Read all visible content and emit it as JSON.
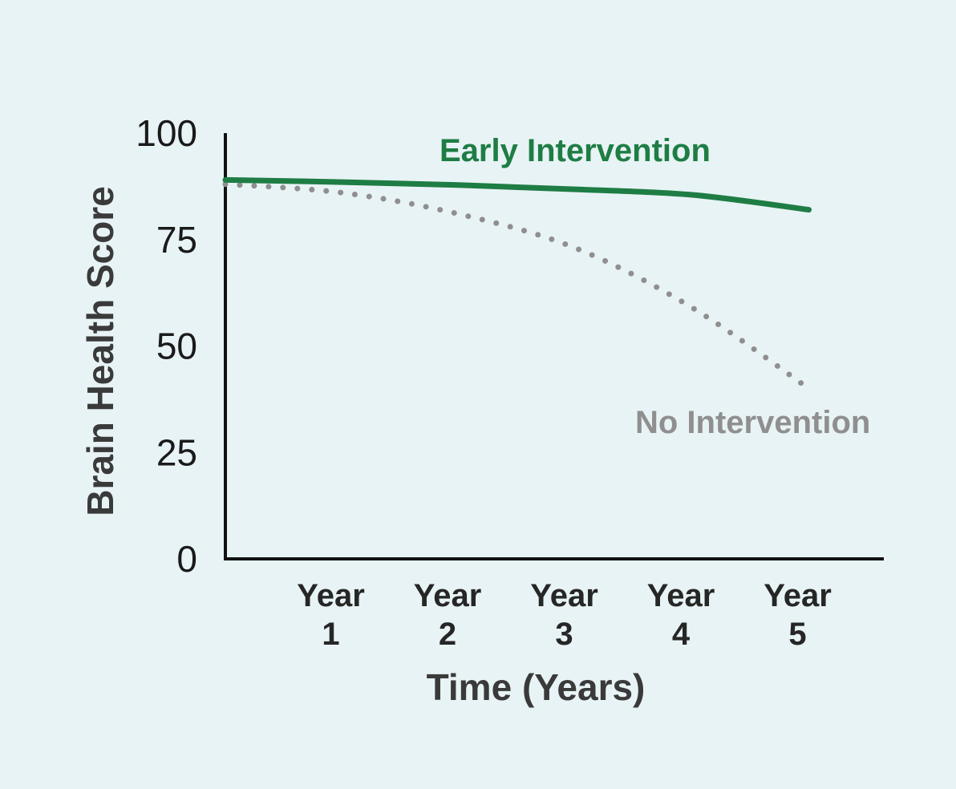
{
  "chart_data": {
    "type": "line",
    "title": "",
    "xlabel": "Time (Years)",
    "ylabel": "Brain Health Score",
    "xlim": [
      0,
      5.7
    ],
    "ylim": [
      0,
      100
    ],
    "yticks": [
      "0",
      "25",
      "50",
      "75",
      "100"
    ],
    "xtick_labels": [
      {
        "x": 1,
        "line1": "Year",
        "line2": "1"
      },
      {
        "x": 2,
        "line1": "Year",
        "line2": "2"
      },
      {
        "x": 3,
        "line1": "Year",
        "line2": "3"
      },
      {
        "x": 4,
        "line1": "Year",
        "line2": "4"
      },
      {
        "x": 5,
        "line1": "Year",
        "line2": "5"
      }
    ],
    "grid": false,
    "legend": "inline labels",
    "x": [
      0,
      1,
      2,
      3,
      4,
      5
    ],
    "series": [
      {
        "name": "Early Intervention",
        "color": "#1e7d44",
        "style": "solid",
        "values": [
          89,
          88.5,
          87.8,
          86.8,
          85.5,
          82
        ]
      },
      {
        "name": "No Intervention",
        "color": "#8f8f8f",
        "style": "dotted",
        "values": [
          88,
          86,
          81,
          73,
          59,
          40
        ]
      }
    ]
  }
}
